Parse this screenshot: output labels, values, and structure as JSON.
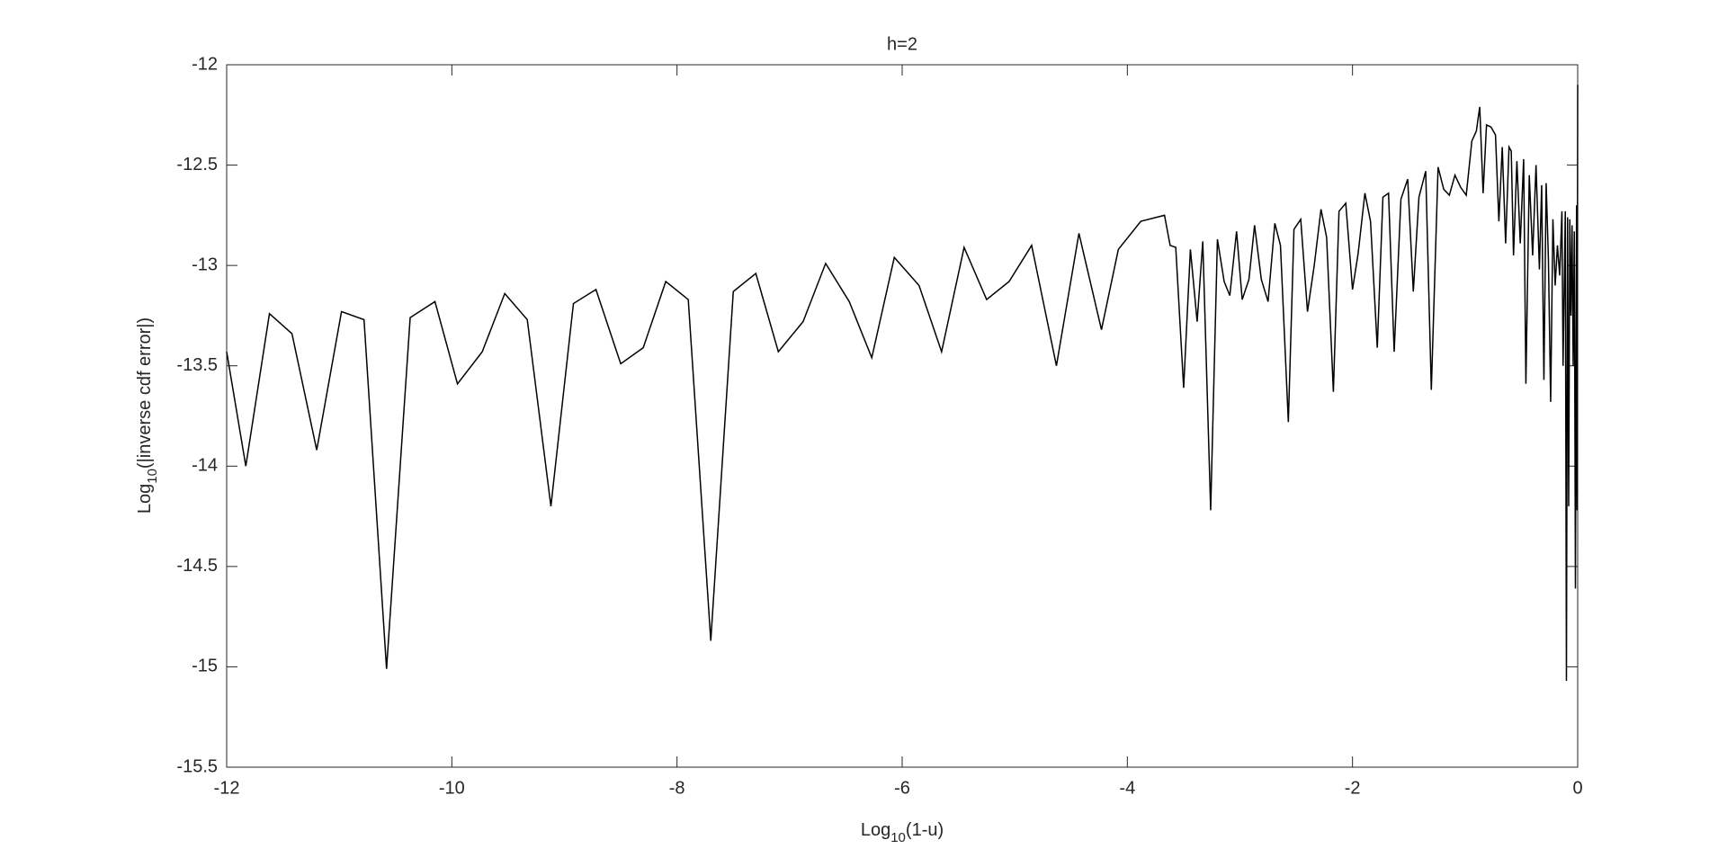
{
  "chart_data": {
    "type": "line",
    "title": "h=2",
    "xlabel": "Log10(1-u)",
    "ylabel": "Log10(|inverse cdf error|)",
    "x": [
      -12,
      -11.83,
      -11.62,
      -11.42,
      -11.2,
      -10.98,
      -10.78,
      -10.58,
      -10.37,
      -10.15,
      -9.95,
      -9.73,
      -9.53,
      -9.33,
      -9.12,
      -8.92,
      -8.72,
      -8.5,
      -8.3,
      -8.1,
      -7.9,
      -7.7,
      -7.5,
      -7.3,
      -7.1,
      -6.88,
      -6.68,
      -6.47,
      -6.27,
      -6.07,
      -5.85,
      -5.65,
      -5.45,
      -5.25,
      -5.05,
      -4.85,
      -4.63,
      -4.43,
      -4.23,
      -4.08,
      -3.88,
      -3.67,
      -3.62,
      -3.57,
      -3.5,
      -3.44,
      -3.38,
      -3.33,
      -3.26,
      -3.2,
      -3.14,
      -3.09,
      -3.03,
      -2.98,
      -2.92,
      -2.87,
      -2.81,
      -2.75,
      -2.69,
      -2.64,
      -2.57,
      -2.52,
      -2.46,
      -2.4,
      -2.34,
      -2.28,
      -2.23,
      -2.17,
      -2.12,
      -2.06,
      -2.0,
      -1.95,
      -1.89,
      -1.84,
      -1.78,
      -1.73,
      -1.68,
      -1.63,
      -1.57,
      -1.51,
      -1.46,
      -1.41,
      -1.35,
      -1.3,
      -1.24,
      -1.19,
      -1.14,
      -1.09,
      -1.04,
      -0.99,
      -0.94,
      -0.9,
      -0.87,
      -0.84,
      -0.81,
      -0.77,
      -0.73,
      -0.7,
      -0.67,
      -0.64,
      -0.61,
      -0.59,
      -0.57,
      -0.54,
      -0.51,
      -0.48,
      -0.46,
      -0.43,
      -0.4,
      -0.37,
      -0.34,
      -0.32,
      -0.3,
      -0.28,
      -0.26,
      -0.24,
      -0.22,
      -0.2,
      -0.18,
      -0.16,
      -0.14,
      -0.13,
      -0.11,
      -0.1,
      -0.09,
      -0.08,
      -0.07,
      -0.06,
      -0.05,
      -0.04,
      -0.03,
      -0.02,
      -0.01,
      -0.005,
      0
    ],
    "series": [
      {
        "color": "#000000",
        "values": [
          -13.43,
          -14.0,
          -13.24,
          -13.34,
          -13.92,
          -13.23,
          -13.27,
          -15.01,
          -13.26,
          -13.18,
          -13.59,
          -13.43,
          -13.14,
          -13.27,
          -14.2,
          -13.19,
          -13.12,
          -13.49,
          -13.41,
          -13.08,
          -13.17,
          -14.87,
          -13.13,
          -13.04,
          -13.43,
          -13.28,
          -12.99,
          -13.18,
          -13.46,
          -12.96,
          -13.1,
          -13.43,
          -12.91,
          -13.17,
          -13.08,
          -12.9,
          -13.5,
          -12.84,
          -13.32,
          -12.92,
          -12.78,
          -12.75,
          -12.9,
          -12.91,
          -13.61,
          -12.92,
          -13.28,
          -12.88,
          -14.22,
          -12.87,
          -13.08,
          -13.15,
          -12.83,
          -13.17,
          -13.07,
          -12.8,
          -13.07,
          -13.18,
          -12.79,
          -12.9,
          -13.78,
          -12.82,
          -12.77,
          -13.23,
          -13.0,
          -12.72,
          -12.86,
          -13.63,
          -12.73,
          -12.69,
          -13.12,
          -12.94,
          -12.64,
          -12.78,
          -13.41,
          -12.66,
          -12.64,
          -13.43,
          -12.67,
          -12.57,
          -13.13,
          -12.66,
          -12.53,
          -13.62,
          -12.51,
          -12.62,
          -12.65,
          -12.55,
          -12.61,
          -12.65,
          -12.38,
          -12.33,
          -12.21,
          -12.64,
          -12.3,
          -12.31,
          -12.35,
          -12.78,
          -12.41,
          -12.89,
          -12.41,
          -12.43,
          -12.95,
          -12.48,
          -12.89,
          -12.47,
          -13.59,
          -12.55,
          -12.95,
          -12.5,
          -13.02,
          -12.6,
          -13.57,
          -12.59,
          -12.97,
          -13.68,
          -12.77,
          -13.1,
          -12.9,
          -13.05,
          -12.73,
          -13.5,
          -12.73,
          -15.07,
          -12.76,
          -14.2,
          -12.77,
          -13.25,
          -12.8,
          -13.5,
          -12.83,
          -14.61,
          -12.7,
          -14.22,
          -12.1
        ]
      }
    ],
    "xlim": [
      -12,
      0
    ],
    "xticks": [
      -12,
      -10,
      -8,
      -6,
      -4,
      -2,
      0
    ],
    "ylim": [
      -15.5,
      -12
    ],
    "yticks": [
      -15.5,
      -15,
      -14.5,
      -14,
      -13.5,
      -13,
      -12.5,
      -12
    ],
    "grid": false
  }
}
